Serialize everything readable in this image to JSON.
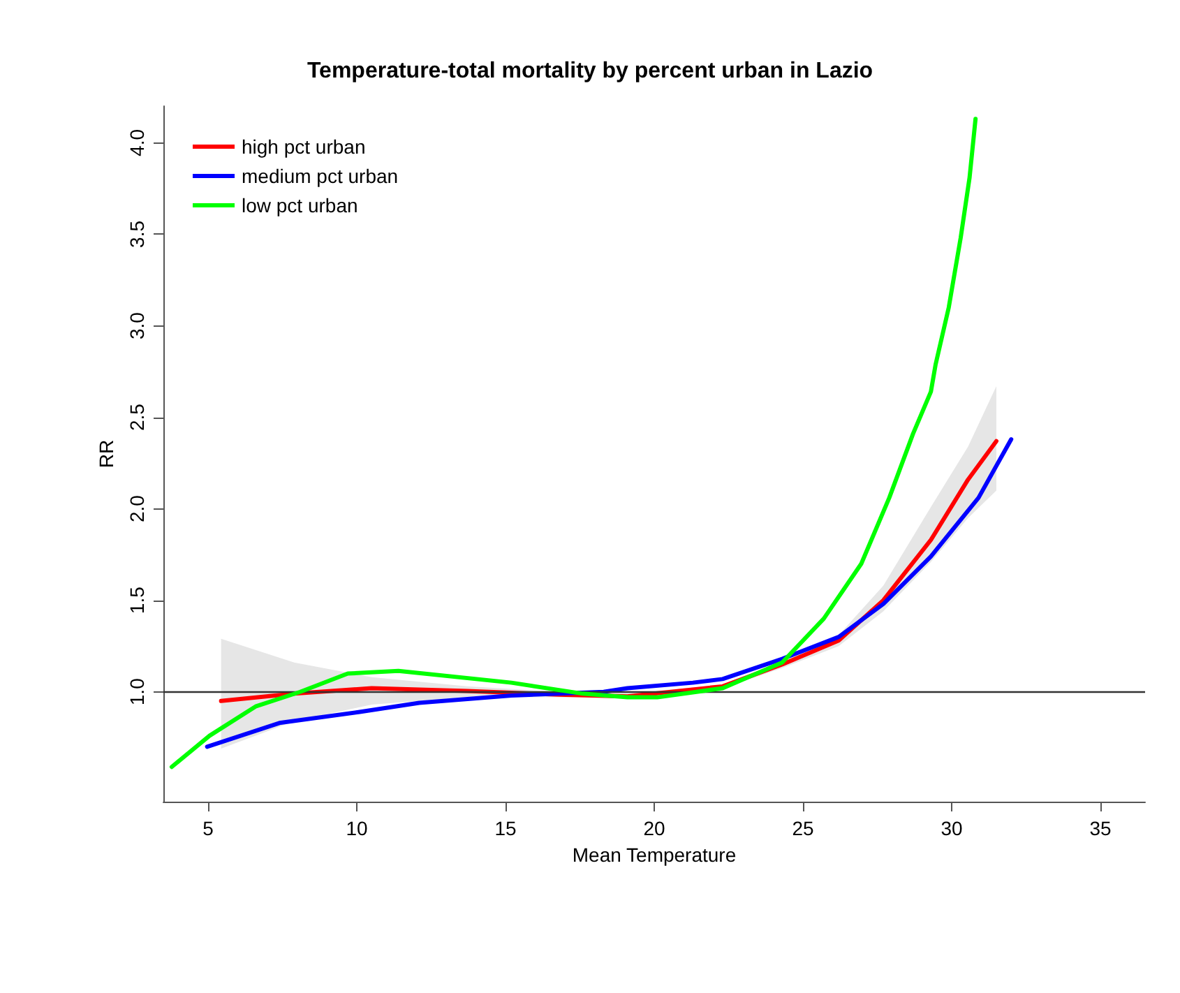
{
  "chart_data": {
    "type": "line",
    "title": "Temperature-total mortality by percent urban in Lazio",
    "xlabel": "Mean Temperature",
    "ylabel": "RR",
    "series": [
      {
        "name": "high pct urban",
        "color": "#ff0000",
        "x": [
          5.44,
          7.9,
          10.5,
          13.7,
          16.8,
          19.1,
          22.3,
          24.3,
          26.2,
          27.7,
          29.3,
          30.55,
          31.5
        ],
        "values": [
          0.95,
          0.99,
          1.02,
          1.005,
          0.985,
          0.975,
          1.03,
          1.15,
          1.28,
          1.5,
          1.83,
          2.16,
          2.37
        ],
        "lower": [
          0.69,
          0.84,
          0.93,
          0.97,
          0.97,
          0.965,
          1.02,
          1.13,
          1.25,
          1.44,
          1.71,
          1.95,
          2.1
        ],
        "upper": [
          1.29,
          1.16,
          1.08,
          1.03,
          1.0,
          0.99,
          1.04,
          1.17,
          1.31,
          1.58,
          2.01,
          2.34,
          2.67
        ]
      },
      {
        "name": "medium pct urban",
        "color": "#0000ff",
        "x": [
          4.97,
          7.4,
          10.1,
          12.1,
          15.2,
          18.3,
          19.1,
          21.3,
          22.3,
          24.3,
          26.2,
          27.7,
          29.3,
          30.9,
          32.0
        ],
        "values": [
          0.7,
          0.83,
          0.89,
          0.94,
          0.98,
          1.0,
          1.02,
          1.05,
          1.07,
          1.18,
          1.3,
          1.48,
          1.74,
          2.06,
          2.38
        ]
      },
      {
        "name": "low pct urban",
        "color": "#00ff00",
        "x": [
          3.78,
          5.05,
          6.6,
          8.1,
          9.7,
          11.4,
          15.2,
          17.6,
          19.1,
          20.1,
          22.3,
          24.3,
          25.7,
          26.96,
          27.9,
          28.7,
          29.3,
          29.46,
          29.9,
          30.3,
          30.6,
          30.8
        ],
        "values": [
          0.59,
          0.76,
          0.92,
          1.0,
          1.1,
          1.114,
          1.05,
          0.99,
          0.97,
          0.97,
          1.02,
          1.16,
          1.4,
          1.7,
          2.06,
          2.41,
          2.64,
          2.79,
          3.1,
          3.48,
          3.81,
          4.13
        ]
      }
    ],
    "xlim": [
      3.5,
      36.5
    ],
    "xticks": [
      5,
      10,
      15,
      20,
      25,
      30,
      35
    ],
    "ylim": [
      0.4,
      4.2
    ],
    "yticks": [
      {
        "value": 1,
        "label": "1.0"
      },
      {
        "value": 1.5,
        "label": "1.5"
      },
      {
        "value": 2,
        "label": "2.0"
      },
      {
        "value": 2.5,
        "label": "2.5"
      },
      {
        "value": 3,
        "label": "3.0"
      },
      {
        "value": 3.5,
        "label": "3.5"
      },
      {
        "value": 4,
        "label": "4.0"
      }
    ],
    "ref_lines": [
      {
        "axis": "y",
        "value": 1,
        "color": "#333333"
      }
    ],
    "legend": "top left",
    "marker": "none",
    "line_style": "solid",
    "grid": false
  }
}
